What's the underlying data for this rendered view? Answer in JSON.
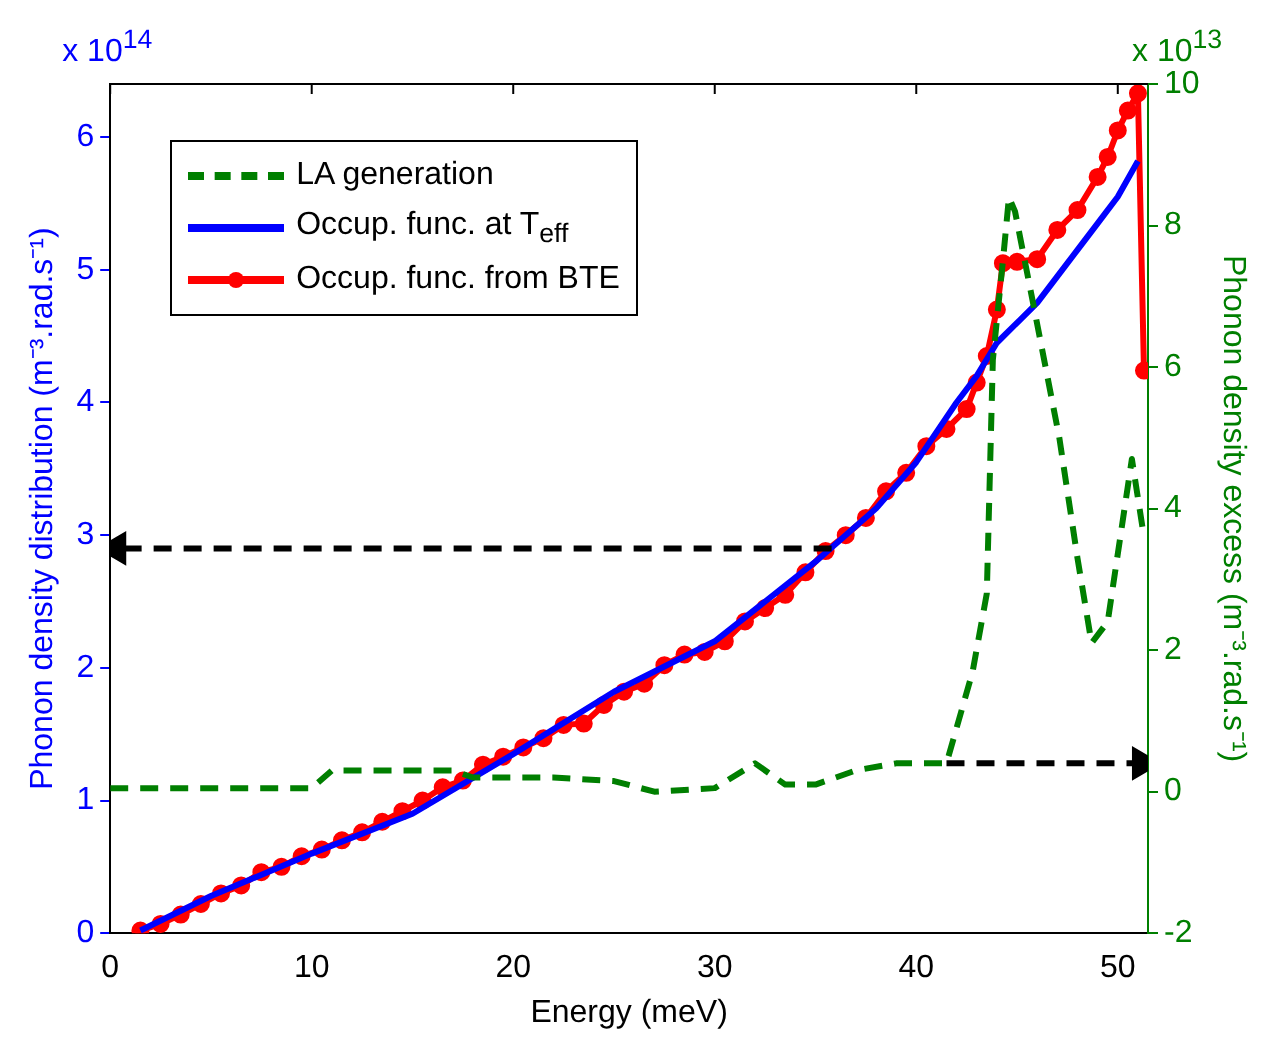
{
  "chart_data": {
    "type": "line",
    "xlabel": "Energy (meV)",
    "ylabel": "Phonon density distribution (m⁻³.rad.s⁻¹)",
    "y2label": "Phonon density excess (m⁻³.rad.s⁻¹)",
    "xlim": [
      0,
      51.5
    ],
    "xticks": [
      0,
      10,
      20,
      30,
      40,
      50
    ],
    "ylim": [
      0,
      6.4
    ],
    "yticks": [
      0,
      1,
      2,
      3,
      4,
      5,
      6
    ],
    "y2lim": [
      -2,
      10
    ],
    "y2ticks": [
      -2,
      0,
      2,
      4,
      6,
      8,
      10
    ],
    "grid": false,
    "legend": "top left",
    "annotations": [
      "x 10$^{14}$",
      "x 10$^{13}$"
    ],
    "series": [
      {
        "name": "LA generation",
        "type": "line",
        "axis": "y2",
        "color": "#007f00",
        "line_style": "dashed",
        "marker": "none",
        "x": [
          0,
          10,
          11,
          12,
          17,
          18,
          22,
          25,
          27,
          30,
          32,
          33.5,
          35,
          37,
          39,
          41.5,
          42.8,
          43.5,
          43.8,
          44.3,
          44.6,
          44.9,
          45.8,
          47.1,
          48,
          48.7,
          49.5,
          50.7,
          51.3
        ],
        "values": [
          0.05,
          0.05,
          0.3,
          0.3,
          0.3,
          0.2,
          0.2,
          0.15,
          0.0,
          0.05,
          0.4,
          0.1,
          0.1,
          0.3,
          0.4,
          0.4,
          1.7,
          2.8,
          6.1,
          7.5,
          8.4,
          8.2,
          6.9,
          5.0,
          3.3,
          2.1,
          2.4,
          4.7,
          3.6
        ]
      },
      {
        "name": "Occup. func. at T$_{eff}$",
        "type": "line",
        "axis": "y",
        "color": "#0000ff",
        "line_style": "solid",
        "marker": "none",
        "x": [
          1.5,
          5,
          10,
          15,
          20,
          25,
          30,
          35,
          38,
          40,
          42,
          43,
          44,
          45,
          46,
          47,
          48,
          49,
          50,
          51
        ],
        "values": [
          0.02,
          0.28,
          0.6,
          0.9,
          1.35,
          1.82,
          2.2,
          2.8,
          3.2,
          3.55,
          4.0,
          4.2,
          4.45,
          4.6,
          4.75,
          4.95,
          5.15,
          5.35,
          5.55,
          5.82
        ]
      },
      {
        "name": "Occup. func. from BTE",
        "type": "line",
        "axis": "y",
        "color": "#ff0000",
        "line_style": "solid",
        "marker": "circle",
        "x": [
          1.5,
          2.5,
          3.5,
          4.5,
          5.5,
          6.5,
          7.5,
          8.5,
          9.5,
          10.5,
          11.5,
          12.5,
          13.5,
          14.5,
          15.5,
          16.5,
          17.5,
          18.5,
          19.5,
          20.5,
          21.5,
          22.5,
          23.5,
          24.5,
          25.5,
          26.5,
          27.5,
          28.5,
          29.5,
          30.5,
          31.5,
          32.5,
          33.5,
          34.5,
          35.5,
          36.5,
          37.5,
          38.5,
          39.5,
          40.5,
          41.5,
          42.5,
          43,
          43.5,
          44,
          44.3,
          45,
          46,
          47,
          48,
          49,
          49.5,
          50,
          50.5,
          51,
          51.3
        ],
        "values": [
          0.02,
          0.07,
          0.14,
          0.22,
          0.3,
          0.36,
          0.46,
          0.5,
          0.58,
          0.63,
          0.7,
          0.76,
          0.84,
          0.92,
          1.0,
          1.1,
          1.15,
          1.27,
          1.33,
          1.4,
          1.47,
          1.57,
          1.58,
          1.72,
          1.82,
          1.88,
          2.02,
          2.1,
          2.12,
          2.2,
          2.35,
          2.45,
          2.55,
          2.72,
          2.88,
          3.0,
          3.13,
          3.33,
          3.47,
          3.67,
          3.8,
          3.95,
          4.15,
          4.35,
          4.7,
          5.05,
          5.06,
          5.08,
          5.3,
          5.45,
          5.7,
          5.85,
          6.05,
          6.2,
          6.33,
          4.24
        ]
      },
      {
        "type": "line",
        "axis": "y",
        "color": "#000000",
        "line_style": "dashed",
        "marker": "triangle",
        "x": [
          35.8,
          0.3
        ],
        "values": [
          2.9,
          2.9
        ]
      },
      {
        "type": "line",
        "axis": "y2",
        "color": "#000000",
        "line_style": "dashed",
        "marker": "triangle",
        "x": [
          41.5,
          51.2
        ],
        "values": [
          0.4,
          0.4
        ]
      }
    ]
  }
}
